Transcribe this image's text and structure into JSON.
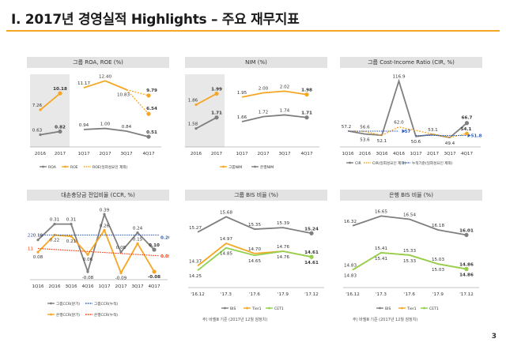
{
  "page": {
    "title": "Ⅰ. 2017년 경영실적 Highlights – 주요 재무지표",
    "page_number": "3"
  },
  "footnotes": {
    "bis_group": "주) 바젤Ⅲ 기준 (2017년 12월 잠정치)",
    "bis_bank": "주) 바젤Ⅲ 기준 (2017년 12월 잠정치)"
  },
  "colors": {
    "gray": "#7f7f7f",
    "orange": "#f5a623",
    "green": "#92d050",
    "blue": "#2e5cb8",
    "red": "#ff3300",
    "accent": "#f5a623"
  },
  "chart_data": [
    {
      "id": "roa_roe",
      "type": "line",
      "title": "그룹 ROA, ROE (%)",
      "annual_categories": [
        "2016",
        "2017"
      ],
      "categories": [
        "1Q17",
        "2Q17",
        "3Q17",
        "4Q17"
      ],
      "series": [
        {
          "name": "ROA",
          "color": "#7f7f7f",
          "annual": [
            0.63,
            0.82
          ],
          "quarterly": [
            0.94,
            1.0,
            0.84,
            0.51
          ],
          "annual_labels": [
            "0.63",
            "0.82"
          ],
          "quarterly_labels": [
            "0.94",
            "1.00",
            "0.84",
            "0.51"
          ]
        },
        {
          "name": "ROE",
          "color": "#f5a623",
          "annual": [
            7.26,
            10.18
          ],
          "quarterly": [
            11.17,
            12.4,
            10.83,
            null
          ],
          "annual_labels": [
            "7.26",
            "10.18"
          ],
          "quarterly_labels": [
            "11.17",
            "12.40",
            "10.83",
            ""
          ]
        },
        {
          "name": "ROE(일회성요인 제외)",
          "color": "#f5a623",
          "dashed": true,
          "quarterly": [
            null,
            null,
            10.83,
            9.79
          ],
          "quarterly_labels": [
            "",
            "",
            "",
            "9.79"
          ]
        },
        {
          "name": "",
          "color": "#f5a623",
          "dashed": true,
          "quarterly": [
            null,
            null,
            10.83,
            6.54
          ],
          "quarterly_labels": [
            "",
            "",
            "",
            "6.54"
          ]
        }
      ]
    },
    {
      "id": "nim",
      "type": "line",
      "title": "NIM (%)",
      "annual_categories": [
        "2016",
        "2017"
      ],
      "categories": [
        "1Q17",
        "2Q17",
        "3Q17",
        "4Q17"
      ],
      "series": [
        {
          "name": "그룹NIM",
          "color": "#f5a623",
          "annual": [
            1.86,
            1.99
          ],
          "quarterly": [
            1.95,
            2.0,
            2.02,
            1.98
          ],
          "annual_labels": [
            "1.86",
            "1.99"
          ],
          "quarterly_labels": [
            "1.95",
            "2.00",
            "2.02",
            "1.98"
          ]
        },
        {
          "name": "은행NIM",
          "color": "#7f7f7f",
          "annual": [
            1.58,
            1.71
          ],
          "quarterly": [
            1.66,
            1.72,
            1.74,
            1.71
          ],
          "annual_labels": [
            "1.58",
            "1.71"
          ],
          "quarterly_labels": [
            "1.66",
            "1.72",
            "1.74",
            "1.71"
          ]
        }
      ]
    },
    {
      "id": "cir",
      "type": "line",
      "title": "그룹 Cost-Income Ratio (CIR, %)",
      "categories": [
        "1Q16",
        "2Q16",
        "3Q16",
        "4Q16",
        "1Q17",
        "2Q17",
        "3Q17",
        "4Q17"
      ],
      "series": [
        {
          "name": "CIR",
          "color": "#7f7f7f",
          "values": [
            57.2,
            53.6,
            52.1,
            116.9,
            50.6,
            53.1,
            49.4,
            66.7
          ],
          "labels": [
            "57.2",
            "53.6",
            "52.1",
            "116.9",
            "50.6",
            "53.1",
            "49.4",
            "66.7"
          ]
        },
        {
          "name": "CIR(일회성요인 제외)",
          "color": "#f5a623",
          "dashed": true,
          "values": [
            57.2,
            56.6,
            52.1,
            62.0,
            null,
            null,
            49.4,
            54.1
          ],
          "labels": [
            "",
            "56.6",
            "",
            "62.0",
            "",
            "",
            "",
            "54.1"
          ]
        },
        {
          "name": "누적기준(일회성요인 제외)",
          "color": "#2e5cb8",
          "dashed": true,
          "values": [
            null,
            null,
            null,
            57.0,
            null,
            null,
            null,
            51.8
          ],
          "labels": [
            "",
            "",
            "",
            "57",
            "",
            "",
            "",
            "51.8"
          ]
        }
      ]
    },
    {
      "id": "ccr",
      "type": "line",
      "title": "대손충당금 전입비율 (CCR, %)",
      "categories": [
        "1Q16",
        "2Q16",
        "3Q16",
        "4Q16",
        "1Q17",
        "2Q17",
        "3Q17",
        "4Q17"
      ],
      "series": [
        {
          "name": "그룹CCR(분기)",
          "color": "#7f7f7f",
          "values": [
            0.18,
            0.31,
            0.31,
            -0.08,
            0.39,
            0.08,
            0.24,
            0.1
          ],
          "labels": [
            "0.18",
            "0.31",
            "0.31",
            "-0.08",
            "0.39",
            "0.08",
            "0.24",
            "0.10"
          ]
        },
        {
          "name": "은행CCR(분기)",
          "color": "#f5a623",
          "values": [
            0.08,
            0.22,
            0.21,
            0.06,
            0.26,
            -0.09,
            0.15,
            -0.08
          ],
          "labels": [
            "0.08",
            "0.22",
            "0.21",
            "0.06",
            "0.26",
            "-0.09",
            "0.15",
            "-0.08"
          ]
        },
        {
          "name": "그룹CCR(누적)",
          "color": "#2e5cb8",
          "dashed": true,
          "values": [
            0.22,
            null,
            null,
            null,
            null,
            null,
            null,
            0.2
          ],
          "labels": [
            "0.22",
            "",
            "",
            "",
            "",
            "",
            "",
            "0.20"
          ]
        },
        {
          "name": "은행CCR(누적)",
          "color": "#ff3300",
          "dashed": true,
          "values": [
            0.11,
            null,
            null,
            null,
            null,
            null,
            null,
            0.05
          ],
          "labels": [
            "0.11",
            "",
            "",
            "",
            "",
            "",
            "",
            "0.05"
          ]
        }
      ]
    },
    {
      "id": "bis_group",
      "type": "line",
      "title": "그룹 BIS 비율 (%)",
      "categories": [
        "'16.12",
        "'17.3",
        "'17.6",
        "'17.9",
        "'17.12"
      ],
      "series": [
        {
          "name": "BIS",
          "color": "#7f7f7f",
          "values": [
            15.27,
            15.68,
            15.35,
            15.39,
            15.24
          ],
          "labels": [
            "15.27",
            "15.68",
            "15.35",
            "15.39",
            "15.24"
          ]
        },
        {
          "name": "Tier1",
          "color": "#f5a623",
          "values": [
            14.37,
            14.97,
            14.7,
            14.76,
            14.61
          ],
          "labels": [
            "14.37",
            "14.97",
            "14.70",
            "14.76",
            "14.61"
          ]
        },
        {
          "name": "CET1",
          "color": "#92d050",
          "values": [
            14.25,
            14.85,
            14.65,
            14.76,
            14.61
          ],
          "labels": [
            "14.25",
            "14.85",
            "14.65",
            "14.76",
            "14.61"
          ]
        }
      ]
    },
    {
      "id": "bis_bank",
      "type": "line",
      "title": "은행 BIS 비율 (%)",
      "categories": [
        "'16.12",
        "'17.3",
        "'17.6",
        "'17.9",
        "'17.12"
      ],
      "series": [
        {
          "name": "BIS",
          "color": "#7f7f7f",
          "values": [
            16.32,
            16.65,
            16.54,
            16.18,
            16.01
          ],
          "labels": [
            "16.32",
            "16.65",
            "16.54",
            "16.18",
            "16.01"
          ]
        },
        {
          "name": "Tier1",
          "color": "#f5a623",
          "values": [
            14.83,
            15.41,
            15.33,
            15.03,
            14.86
          ],
          "labels": [
            "14.83",
            "15.41",
            "15.33",
            "15.03",
            "14.86"
          ]
        },
        {
          "name": "CET1",
          "color": "#92d050",
          "values": [
            14.83,
            15.41,
            15.33,
            15.03,
            14.86
          ],
          "labels": [
            "14.83",
            "15.41",
            "15.33",
            "15.03",
            "14.86"
          ]
        }
      ]
    }
  ]
}
